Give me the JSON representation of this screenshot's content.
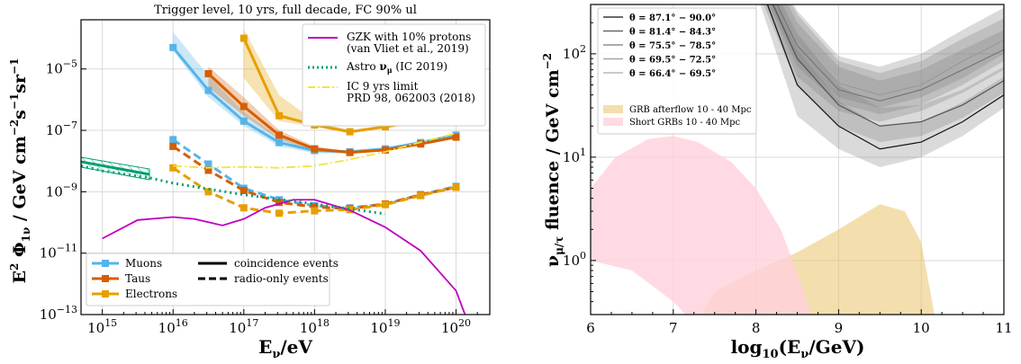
{
  "chart_data": [
    {
      "type": "line",
      "title": "Trigger level, 10 yrs, full decade, FC 90% ul",
      "xlabel": "E_ν/eV",
      "ylabel": "E² Φ_1ν / GeV cm⁻² s⁻¹ sr⁻¹",
      "x_scale": "log",
      "y_scale": "log",
      "xlim": [
        500000000000000.0,
        3e+20
      ],
      "ylim": [
        1e-13,
        0.0004
      ],
      "x_ticks": [
        {
          "v": 1000000000000000.0,
          "label": "10",
          "exp": "15"
        },
        {
          "v": 1e+16,
          "label": "10",
          "exp": "16"
        },
        {
          "v": 1e+17,
          "label": "10",
          "exp": "17"
        },
        {
          "v": 1e+18,
          "label": "10",
          "exp": "18"
        },
        {
          "v": 1e+19,
          "label": "10",
          "exp": "19"
        },
        {
          "v": 1e+20,
          "label": "10",
          "exp": "20"
        }
      ],
      "y_ticks": [
        {
          "v": 1e-13,
          "label": "10",
          "exp": "−13"
        },
        {
          "v": 1e-11,
          "label": "10",
          "exp": "−11"
        },
        {
          "v": 1e-09,
          "label": "10",
          "exp": "−9"
        },
        {
          "v": 1e-07,
          "label": "10",
          "exp": "−7"
        },
        {
          "v": 1e-05,
          "label": "10",
          "exp": "−5"
        }
      ],
      "grid": true,
      "series": [
        {
          "name": "Muons",
          "color": "#56B4E9",
          "style": "solid",
          "x": [
            1e+16,
            3.16e+16,
            1e+17,
            3.16e+17,
            1e+18,
            3.16e+18,
            1e+19,
            3.16e+19,
            1e+20
          ],
          "y": [
            5e-05,
            2e-06,
            2e-07,
            4e-08,
            2.2e-08,
            2e-08,
            2.5e-08,
            4e-08,
            7e-08
          ],
          "band_low": [
            4e-05,
            1.2e-06,
            1.4e-07,
            3e-08,
            1.8e-08,
            1.8e-08,
            2.3e-08,
            3.6e-08,
            6e-08
          ],
          "band_high": [
            0.00016,
            6e-06,
            4e-07,
            6e-08,
            2.6e-08,
            2.2e-08,
            2.7e-08,
            4.5e-08,
            8e-08
          ]
        },
        {
          "name": "Taus",
          "color": "#D55E00",
          "style": "solid",
          "x": [
            3.16e+16,
            1e+17,
            3.16e+17,
            1e+18,
            3.16e+18,
            1e+19,
            3.16e+19,
            1e+20
          ],
          "y": [
            7e-06,
            6e-07,
            7e-08,
            2.5e-08,
            1.9e-08,
            2.3e-08,
            3.6e-08,
            6e-08
          ],
          "band_low": [
            2.5e-06,
            3e-07,
            5e-08,
            2.2e-08,
            1.8e-08,
            2.1e-08,
            3.3e-08,
            5.6e-08
          ],
          "band_high": [
            1.2e-05,
            1.2e-06,
            1e-07,
            3e-08,
            2.1e-08,
            2.5e-08,
            4e-08,
            6.5e-08
          ]
        },
        {
          "name": "Electrons",
          "color": "#E69F00",
          "style": "solid",
          "x": [
            1e+17,
            3.16e+17,
            1e+18,
            3.16e+18,
            1e+19,
            3.16e+19,
            1e+20
          ],
          "y": [
            0.0001,
            3e-07,
            1.5e-07,
            9e-08,
            1.3e-07,
            2e-07,
            3.6e-07
          ],
          "band_low": [
            5e-06,
            2e-07,
            1.3e-07,
            8e-08,
            1.2e-07,
            1.8e-07,
            3.4e-07
          ],
          "band_high": [
            0.0002,
            1.4e-06,
            2e-07,
            1e-07,
            1.5e-07,
            2.2e-07,
            3.9e-07
          ]
        },
        {
          "name": "Muons radio-only",
          "color": "#56B4E9",
          "style": "dashed",
          "x": [
            1e+16,
            3.16e+16,
            1e+17,
            3.16e+17,
            1e+18,
            3.16e+18,
            1e+19,
            3.16e+19,
            1e+20
          ],
          "y": [
            5e-08,
            8e-09,
            1.3e-09,
            5.5e-10,
            3.5e-10,
            3e-10,
            4e-10,
            8e-10,
            1.5e-09
          ]
        },
        {
          "name": "Taus radio-only",
          "color": "#D55E00",
          "style": "dashed",
          "x": [
            1e+16,
            3.16e+16,
            1e+17,
            3.16e+17,
            1e+18,
            3.16e+18,
            1e+19,
            3.16e+19,
            1e+20
          ],
          "y": [
            3e-08,
            5e-09,
            1.1e-09,
            4.5e-10,
            3.2e-10,
            2.8e-10,
            4e-10,
            8e-10,
            1.4e-09
          ]
        },
        {
          "name": "Electrons radio-only",
          "color": "#E69F00",
          "style": "dashed",
          "x": [
            1e+16,
            3.16e+16,
            1e+17,
            3.16e+17,
            1e+18,
            3.16e+18,
            1e+19,
            3.16e+19,
            1e+20
          ],
          "y": [
            6e-09,
            1e-09,
            3e-10,
            2e-10,
            2.4e-10,
            2.6e-10,
            3.8e-10,
            7.5e-10,
            1.4e-09
          ]
        },
        {
          "name": "GZK with 10% protons (van Vliet et al., 2019)",
          "color": "#C000C0",
          "style": "line",
          "x": [
            1000000000000000.0,
            3160000000000000.0,
            1e+16,
            2e+16,
            5e+16,
            1e+17,
            2e+17,
            5e+17,
            1e+18,
            3.16e+18,
            1e+19,
            3.16e+19,
            1e+20,
            1.5e+20
          ],
          "y": [
            3e-11,
            1.2e-10,
            1.5e-10,
            1.3e-10,
            8e-11,
            1.3e-10,
            3e-10,
            5.5e-10,
            5.5e-10,
            2.5e-10,
            7e-11,
            1.2e-11,
            6e-13,
            5e-14
          ]
        },
        {
          "name": "Astro ν_μ (IC 2019)",
          "color": "#009E73",
          "style": "dotted",
          "x": [
            500000000000000.0,
            1000000000000000.0,
            4500000000000000.0,
            1e+16,
            1e+17,
            1e+18,
            1e+19
          ],
          "y": [
            7e-09,
            4.8e-09,
            2.9e-09,
            1.9e-09,
            8e-10,
            4e-10,
            1.9e-10
          ]
        },
        {
          "name": "IC 9 yrs limit PRD 98, 062003 (2018)",
          "color": "#F0E442",
          "style": "dashdot",
          "x": [
            1e+16,
            3e+16,
            1e+17,
            3e+17,
            1e+18,
            3e+18,
            1e+19,
            3e+19,
            1e+20
          ],
          "y": [
            7e-09,
            6e-09,
            6.5e-09,
            6e-09,
            7e-09,
            1.1e-08,
            2e-08,
            4e-08,
            8e-08
          ]
        }
      ],
      "legend_upper": {
        "location": "top-right",
        "entries": [
          "GZK with 10% protons",
          "(van Vliet et al., 2019)",
          "Astro ν_μ (IC 2019)",
          "IC 9 yrs limit",
          "PRD 98, 062003 (2018)"
        ]
      },
      "legend_lower": {
        "location": "bottom-left",
        "flavors": [
          "Muons",
          "Taus",
          "Electrons"
        ],
        "styles": [
          "coincidence events",
          "radio-only events"
        ]
      }
    },
    {
      "type": "area",
      "title": "",
      "xlabel": "log₁₀(E_ν/GeV)",
      "ylabel": "ν_μ/τ fluence / GeV cm⁻²",
      "y_scale": "log",
      "xlim": [
        6,
        11
      ],
      "ylim": [
        0.3,
        300
      ],
      "x_ticks": [
        {
          "v": 6,
          "label": "6"
        },
        {
          "v": 7,
          "label": "7"
        },
        {
          "v": 8,
          "label": "8"
        },
        {
          "v": 9,
          "label": "9"
        },
        {
          "v": 10,
          "label": "10"
        },
        {
          "v": 11,
          "label": "11"
        }
      ],
      "y_ticks": [
        {
          "v": 1,
          "label": "10",
          "exp": "0"
        },
        {
          "v": 10,
          "label": "10",
          "exp": "1"
        },
        {
          "v": 100,
          "label": "10",
          "exp": "2"
        }
      ],
      "grid": true,
      "x": [
        8.0,
        8.5,
        9.0,
        9.5,
        10.0,
        10.5,
        11.0
      ],
      "series": [
        {
          "name": "θ = 87.1° − 90.0°",
          "color": "#111111",
          "y": [
            600,
            50,
            20,
            12,
            14,
            22,
            40
          ],
          "band_low": [
            400,
            25,
            12,
            8,
            10,
            16,
            30
          ],
          "band_high": [
            900,
            110,
            35,
            20,
            22,
            34,
            60
          ]
        },
        {
          "name": "θ = 81.4° − 84.3°",
          "color": "#555555",
          "y": [
            700,
            90,
            32,
            20,
            22,
            32,
            55
          ],
          "band_low": [
            450,
            50,
            20,
            14,
            16,
            24,
            42
          ],
          "band_high": [
            1000,
            160,
            50,
            30,
            32,
            45,
            75
          ]
        },
        {
          "name": "θ = 75.5° − 78.5°",
          "color": "#777777",
          "y": [
            800,
            120,
            45,
            35,
            45,
            70,
            110
          ],
          "band_low": [
            500,
            60,
            28,
            22,
            28,
            42,
            70
          ],
          "band_high": [
            1200,
            200,
            75,
            55,
            70,
            110,
            170
          ]
        },
        {
          "name": "θ = 69.5° − 72.5°",
          "color": "#999999",
          "y": [
            900,
            140,
            52,
            40,
            50,
            85,
            135
          ],
          "band_low": [
            550,
            75,
            33,
            26,
            32,
            50,
            85
          ],
          "band_high": [
            1300,
            240,
            85,
            65,
            85,
            140,
            220
          ]
        },
        {
          "name": "θ = 66.4° − 69.5°",
          "color": "#AAAAAA",
          "y": [
            1000,
            160,
            60,
            45,
            55,
            95,
            160
          ],
          "band_low": [
            600,
            85,
            38,
            30,
            38,
            58,
            100
          ],
          "band_high": [
            1500,
            260,
            95,
            75,
            100,
            170,
            280
          ]
        }
      ],
      "regions": [
        {
          "name": "GRB afterflow 10 - 40 Mpc",
          "color": "#E9C46A",
          "x": [
            6.7,
            7.0,
            7.5,
            8.0,
            8.5,
            9.0,
            9.5,
            9.8,
            10.0,
            10.2,
            10.2,
            9.5,
            9.0,
            8.5,
            8.0,
            7.5,
            7.0,
            6.7
          ],
          "y": [
            0.1,
            0.1,
            0.5,
            0.8,
            1.2,
            2.0,
            3.5,
            3.0,
            1.5,
            0.2,
            0.1,
            0.1,
            0.1,
            0.1,
            0.1,
            0.1,
            0.1,
            0.1
          ]
        },
        {
          "name": "Short GRBs 10 - 40 Mpc",
          "color": "#FFD1DC",
          "x": [
            6.0,
            6.3,
            6.7,
            7.0,
            7.3,
            7.7,
            8.0,
            8.3,
            8.55,
            8.7,
            8.7,
            8.4,
            8.0,
            7.5,
            7.0,
            6.5,
            6.0
          ],
          "y": [
            5.0,
            10.0,
            15.0,
            16.0,
            14.0,
            9.0,
            5.0,
            2.0,
            0.6,
            0.25,
            0.1,
            0.1,
            0.12,
            0.15,
            0.4,
            0.8,
            1.0
          ]
        }
      ],
      "legend": {
        "location": "top-left"
      }
    }
  ]
}
